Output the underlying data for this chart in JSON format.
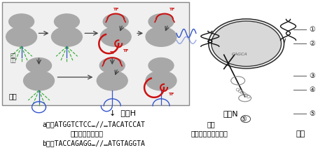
{
  "fig_width": 4.74,
  "fig_height": 2.31,
  "dpi": 100,
  "bg_color": "#ffffff",
  "fig1_label": "图一",
  "fig2_label": "图二",
  "fig3_label": "图三",
  "gene_h_label": "↓  基因H",
  "gene_n_label": "基因N",
  "chain_a": "a链：ATGGTCTCC…//…TACATCCAT",
  "chain_bonds": "              ｜｜｜｜｜｜｜｜        ｜｜｜｜｜｜｜｜｜",
  "chain_b": "b链：TACCAGAGG…//…ATGTAGGTA",
  "numbered_labels": [
    "①",
    "②",
    "③",
    "④",
    "⑤"
  ],
  "text_color": "#000000",
  "sequence_fontsize": 7.0,
  "label_fontsize": 8,
  "small_fontsize": 7
}
